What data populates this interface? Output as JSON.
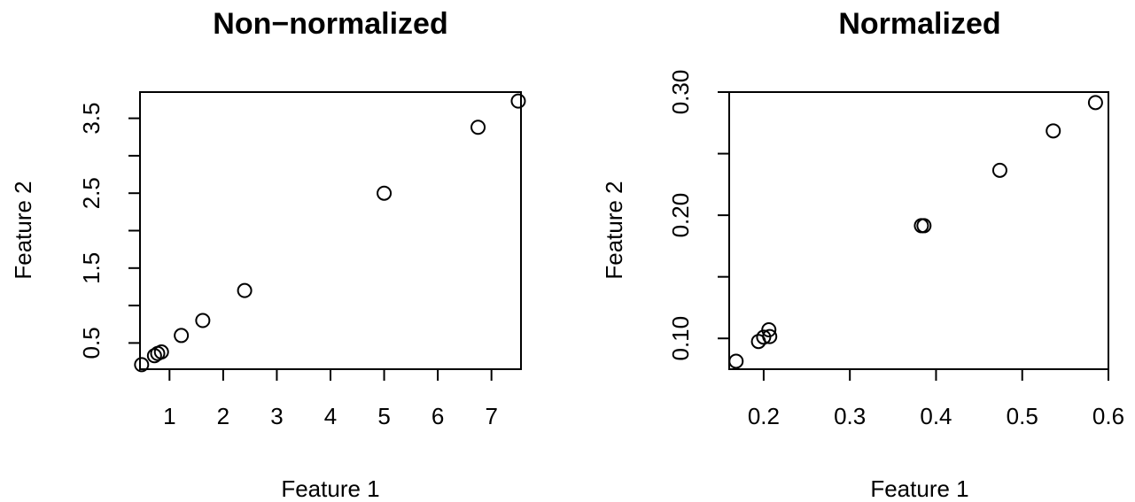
{
  "chart_data": [
    {
      "type": "scatter",
      "title": "Non−normalized",
      "xlabel": "Feature 1",
      "ylabel": "Feature 2",
      "xlim": [
        0.45,
        7.55
      ],
      "ylim": [
        0.15,
        3.85
      ],
      "xticks": [
        1,
        2,
        3,
        4,
        5,
        6,
        7
      ],
      "xtick_labels": [
        "1",
        "2",
        "3",
        "4",
        "5",
        "6",
        "7"
      ],
      "yticks": [
        0.5,
        1.0,
        1.5,
        2.0,
        2.5,
        3.0,
        3.5
      ],
      "ytick_labels": [
        "0.5",
        "",
        "1.5",
        "",
        "2.5",
        "",
        "3.5"
      ],
      "grid": false,
      "x": [
        0.48,
        0.72,
        0.78,
        0.85,
        1.22,
        1.62,
        2.4,
        5.0,
        6.75,
        7.5
      ],
      "y": [
        0.21,
        0.33,
        0.36,
        0.38,
        0.6,
        0.8,
        1.2,
        2.5,
        3.38,
        3.73
      ]
    },
    {
      "type": "scatter",
      "title": "Normalized",
      "xlabel": "Feature 1",
      "ylabel": "Feature 2",
      "xlim": [
        0.16,
        0.6
      ],
      "ylim": [
        0.075,
        0.3
      ],
      "xticks": [
        0.2,
        0.3,
        0.4,
        0.5,
        0.6
      ],
      "xtick_labels": [
        "0.2",
        "0.3",
        "0.4",
        "0.5",
        "0.6"
      ],
      "yticks": [
        0.1,
        0.15,
        0.2,
        0.25,
        0.3
      ],
      "ytick_labels": [
        "0.10",
        "",
        "0.20",
        "",
        "0.30"
      ],
      "grid": false,
      "x": [
        0.168,
        0.194,
        0.2,
        0.206,
        0.207,
        0.383,
        0.386,
        0.474,
        0.536,
        0.585
      ],
      "y": [
        0.0815,
        0.0975,
        0.101,
        0.107,
        0.1015,
        0.1915,
        0.1915,
        0.2365,
        0.2685,
        0.2915
      ]
    }
  ]
}
